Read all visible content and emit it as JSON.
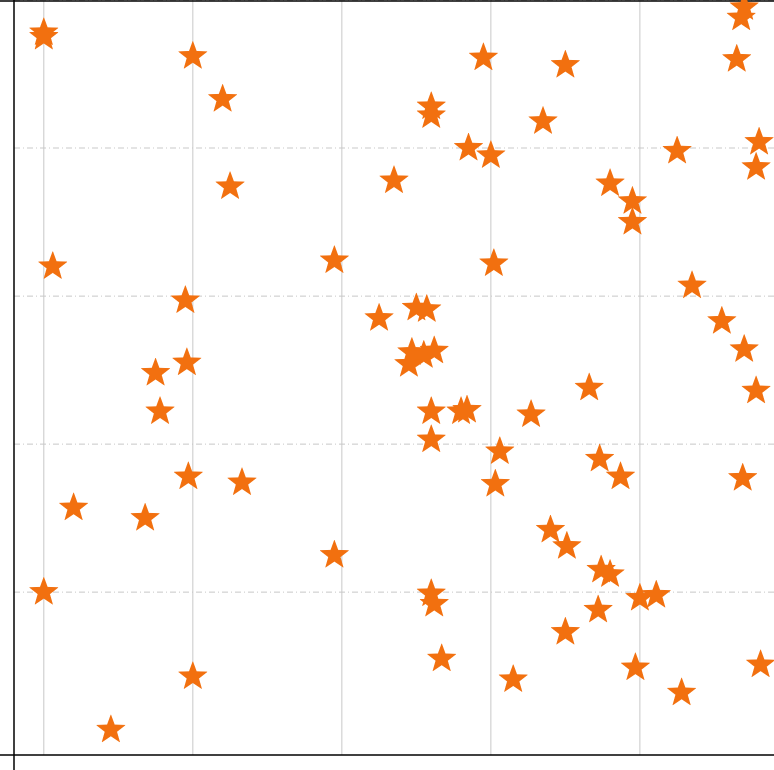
{
  "chart_data": {
    "type": "scatter",
    "marker": "star",
    "marker_color": "#f2700f",
    "xlim": [
      -0.2,
      4.9
    ],
    "ylim": [
      -0.1,
      5.0
    ],
    "grid": {
      "x": "solid",
      "y": "dash-dot"
    },
    "points": [
      {
        "x": 0.0,
        "y": 4.78
      },
      {
        "x": 0.0,
        "y": 4.75
      },
      {
        "x": 1.0,
        "y": 4.62
      },
      {
        "x": 1.2,
        "y": 4.33
      },
      {
        "x": 1.25,
        "y": 3.74
      },
      {
        "x": 0.06,
        "y": 3.2
      },
      {
        "x": 1.95,
        "y": 3.24
      },
      {
        "x": 2.35,
        "y": 3.78
      },
      {
        "x": 2.6,
        "y": 4.28
      },
      {
        "x": 2.6,
        "y": 4.22
      },
      {
        "x": 2.95,
        "y": 4.61
      },
      {
        "x": 2.85,
        "y": 4.0
      },
      {
        "x": 3.0,
        "y": 3.95
      },
      {
        "x": 3.5,
        "y": 4.56
      },
      {
        "x": 3.35,
        "y": 4.18
      },
      {
        "x": 3.02,
        "y": 3.22
      },
      {
        "x": 4.7,
        "y": 4.95
      },
      {
        "x": 4.68,
        "y": 4.88
      },
      {
        "x": 4.65,
        "y": 4.6
      },
      {
        "x": 4.8,
        "y": 4.04
      },
      {
        "x": 4.78,
        "y": 3.87
      },
      {
        "x": 4.25,
        "y": 3.98
      },
      {
        "x": 3.8,
        "y": 3.76
      },
      {
        "x": 3.95,
        "y": 3.64
      },
      {
        "x": 3.95,
        "y": 3.5
      },
      {
        "x": 4.35,
        "y": 3.07
      },
      {
        "x": 4.55,
        "y": 2.83
      },
      {
        "x": 4.7,
        "y": 2.64
      },
      {
        "x": 4.78,
        "y": 2.36
      },
      {
        "x": 4.69,
        "y": 1.77
      },
      {
        "x": 0.95,
        "y": 2.97
      },
      {
        "x": 2.25,
        "y": 2.85
      },
      {
        "x": 2.5,
        "y": 2.92
      },
      {
        "x": 2.57,
        "y": 2.91
      },
      {
        "x": 2.47,
        "y": 2.62
      },
      {
        "x": 2.55,
        "y": 2.6
      },
      {
        "x": 2.62,
        "y": 2.63
      },
      {
        "x": 2.45,
        "y": 2.54
      },
      {
        "x": 0.75,
        "y": 2.48
      },
      {
        "x": 0.96,
        "y": 2.55
      },
      {
        "x": 0.78,
        "y": 2.22
      },
      {
        "x": 0.2,
        "y": 1.57
      },
      {
        "x": 0.68,
        "y": 1.5
      },
      {
        "x": 0.97,
        "y": 1.78
      },
      {
        "x": 1.33,
        "y": 1.74
      },
      {
        "x": 1.95,
        "y": 1.25
      },
      {
        "x": 2.6,
        "y": 2.22
      },
      {
        "x": 2.6,
        "y": 2.03
      },
      {
        "x": 2.8,
        "y": 2.22
      },
      {
        "x": 2.84,
        "y": 2.23
      },
      {
        "x": 3.06,
        "y": 1.95
      },
      {
        "x": 3.03,
        "y": 1.73
      },
      {
        "x": 3.27,
        "y": 2.2
      },
      {
        "x": 3.66,
        "y": 2.38
      },
      {
        "x": 3.73,
        "y": 1.9
      },
      {
        "x": 3.87,
        "y": 1.78
      },
      {
        "x": 3.4,
        "y": 1.42
      },
      {
        "x": 3.51,
        "y": 1.31
      },
      {
        "x": 3.74,
        "y": 1.15
      },
      {
        "x": 3.8,
        "y": 1.12
      },
      {
        "x": 4.0,
        "y": 0.96
      },
      {
        "x": 4.11,
        "y": 0.98
      },
      {
        "x": 3.72,
        "y": 0.88
      },
      {
        "x": 3.5,
        "y": 0.73
      },
      {
        "x": 2.6,
        "y": 0.99
      },
      {
        "x": 2.62,
        "y": 0.92
      },
      {
        "x": 2.67,
        "y": 0.55
      },
      {
        "x": 3.15,
        "y": 0.41
      },
      {
        "x": 3.97,
        "y": 0.49
      },
      {
        "x": 4.28,
        "y": 0.32
      },
      {
        "x": 4.81,
        "y": 0.51
      },
      {
        "x": 0.0,
        "y": 1.0
      },
      {
        "x": 0.45,
        "y": 0.07
      },
      {
        "x": 1.0,
        "y": 0.43
      }
    ]
  }
}
